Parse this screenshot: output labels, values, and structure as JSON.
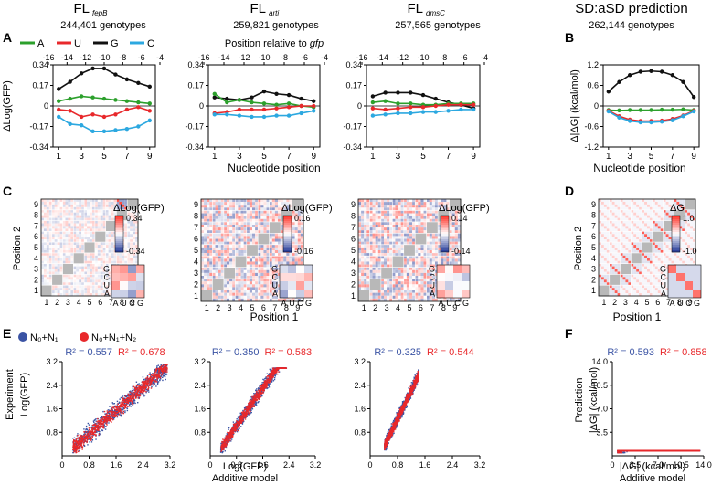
{
  "figure": {
    "titles": [
      {
        "main": "FL",
        "sub": "fepB",
        "genotypes": "244,401 genotypes"
      },
      {
        "main": "FL",
        "sub": "arti",
        "genotypes": "259,821 genotypes"
      },
      {
        "main": "FL",
        "sub": "dmsC",
        "genotypes": "257,565 genotypes"
      },
      {
        "main": "SD:aSD prediction",
        "sub": "",
        "genotypes": "262,144 genotypes"
      }
    ],
    "panel_letters": {
      "A": "A",
      "B": "B",
      "C": "C",
      "D": "D",
      "E": "E",
      "F": "F"
    },
    "legend_nuc": [
      "A",
      "U",
      "G",
      "C"
    ],
    "legend_model": [
      "N₀+N₁",
      "N₀+N₁+N₂"
    ],
    "top_axis_label": "Position relative to gfp",
    "labels": {
      "nuc_position": "Nucleotide position",
      "position1": "Position 1",
      "position2": "Position 2",
      "dlog_gfp": "ΔLog(GFP)",
      "ddg": "Δ|ΔG| (kcal/mol)",
      "dg_short": "ΔG",
      "experiment": "Experiment",
      "log_gfp": "Log(GFP)",
      "additive_model": "Additive model",
      "prediction": "Prediction",
      "abs_dg": "|ΔG| (kcal/mol)"
    },
    "r2_labels": [
      [
        "R² = 0.557",
        "R² = 0.678"
      ],
      [
        "R² = 0.350",
        "R² = 0.583"
      ],
      [
        "R² = 0.325",
        "R² = 0.544"
      ],
      [
        "R² = 0.593",
        "R² = 0.858"
      ]
    ],
    "colorbars": [
      [
        "0.34",
        "-0.34"
      ],
      [
        "0.16",
        "-0.16"
      ],
      [
        "0.14",
        "-0.14"
      ],
      [
        "1.0",
        "-1.0"
      ]
    ],
    "pair_axis_x": [
      "A",
      "U",
      "C",
      "G"
    ],
    "pair_axis_y": [
      "G",
      "C",
      "U",
      "A"
    ],
    "colors": {
      "A": "#2ca02c",
      "U": "#e8282b",
      "G": "#111111",
      "C": "#2ca8e0",
      "blue": "#3a53a4",
      "red": "#e8282b",
      "grey": "#b8b8b8"
    }
  },
  "chart_data": [
    {
      "type": "line",
      "title": "FL fepB",
      "xlabel": "Nucleotide position",
      "ylabel": "ΔLog(GFP)",
      "x": [
        1,
        2,
        3,
        4,
        5,
        6,
        7,
        8,
        9
      ],
      "xticks": [
        "1",
        "3",
        "5",
        "7",
        "9"
      ],
      "top_xticks": [
        "-16",
        "-14",
        "-12",
        "-10",
        "-8",
        "-6",
        "-4"
      ],
      "ylim": [
        -0.34,
        0.34
      ],
      "yticks": [
        "0.34",
        "0.17",
        "0",
        "-0.17",
        "-0.34"
      ],
      "series": [
        {
          "name": "G",
          "values": [
            0.14,
            0.2,
            0.27,
            0.31,
            0.31,
            0.26,
            0.22,
            0.19,
            0.16
          ]
        },
        {
          "name": "A",
          "values": [
            0.04,
            0.06,
            0.08,
            0.07,
            0.06,
            0.05,
            0.04,
            0.03,
            0.02
          ]
        },
        {
          "name": "U",
          "values": [
            -0.03,
            -0.04,
            -0.09,
            -0.07,
            -0.09,
            -0.07,
            -0.03,
            -0.01,
            -0.04
          ]
        },
        {
          "name": "C",
          "values": [
            -0.09,
            -0.15,
            -0.16,
            -0.21,
            -0.21,
            -0.2,
            -0.19,
            -0.17,
            -0.12
          ]
        }
      ]
    },
    {
      "type": "line",
      "title": "FL arti",
      "xlabel": "Nucleotide position",
      "ylabel": "ΔLog(GFP)",
      "x": [
        1,
        2,
        3,
        4,
        5,
        6,
        7,
        8,
        9
      ],
      "xticks": [
        "1",
        "3",
        "5",
        "7",
        "9"
      ],
      "top_xticks": [
        "-16",
        "-14",
        "-12",
        "-10",
        "-8",
        "-6",
        "-4"
      ],
      "ylim": [
        -0.34,
        0.34
      ],
      "yticks": [
        "0.34",
        "0.17",
        "0",
        "-0.17",
        "-0.34"
      ],
      "series": [
        {
          "name": "G",
          "values": [
            0.07,
            0.06,
            0.05,
            0.07,
            0.12,
            0.1,
            0.09,
            0.06,
            0.04
          ]
        },
        {
          "name": "A",
          "values": [
            0.1,
            0.03,
            0.05,
            0.03,
            0.02,
            0.01,
            0.02,
            0.0,
            -0.01
          ]
        },
        {
          "name": "U",
          "values": [
            -0.06,
            -0.05,
            -0.03,
            -0.03,
            -0.03,
            -0.02,
            -0.01,
            0.0,
            0.0
          ]
        },
        {
          "name": "C",
          "values": [
            -0.07,
            -0.07,
            -0.08,
            -0.09,
            -0.09,
            -0.08,
            -0.08,
            -0.06,
            -0.04
          ]
        }
      ]
    },
    {
      "type": "line",
      "title": "FL dmsC",
      "xlabel": "Nucleotide position",
      "ylabel": "ΔLog(GFP)",
      "x": [
        1,
        2,
        3,
        4,
        5,
        6,
        7,
        8,
        9
      ],
      "xticks": [
        "1",
        "3",
        "5",
        "7",
        "9"
      ],
      "top_xticks": [
        "-16",
        "-14",
        "-12",
        "-10",
        "-8",
        "-6",
        "-4"
      ],
      "ylim": [
        -0.34,
        0.34
      ],
      "yticks": [
        "0.34",
        "0.17",
        "0",
        "-0.17",
        "-0.34"
      ],
      "series": [
        {
          "name": "G",
          "values": [
            0.08,
            0.11,
            0.11,
            0.11,
            0.09,
            0.06,
            0.03,
            0.01,
            -0.02
          ]
        },
        {
          "name": "A",
          "values": [
            0.03,
            0.04,
            0.02,
            0.02,
            0.01,
            0.01,
            0.02,
            0.02,
            0.02
          ]
        },
        {
          "name": "U",
          "values": [
            -0.02,
            -0.03,
            -0.02,
            -0.01,
            -0.01,
            0.0,
            0.01,
            0.01,
            0.01
          ]
        },
        {
          "name": "C",
          "values": [
            -0.08,
            -0.07,
            -0.06,
            -0.06,
            -0.05,
            -0.05,
            -0.04,
            -0.03,
            -0.03
          ]
        }
      ]
    },
    {
      "type": "line",
      "title": "SD:aSD prediction",
      "xlabel": "Nucleotide position",
      "ylabel": "Δ|ΔG| (kcal/mol)",
      "x": [
        1,
        2,
        3,
        4,
        5,
        6,
        7,
        8,
        9
      ],
      "xticks": [
        "1",
        "3",
        "5",
        "7",
        "9"
      ],
      "ylim": [
        -1.2,
        1.2
      ],
      "yticks": [
        "1.2",
        "0.6",
        "0",
        "-0.6",
        "-1.2"
      ],
      "series": [
        {
          "name": "G",
          "values": [
            0.42,
            0.7,
            0.9,
            1.0,
            1.02,
            1.0,
            0.9,
            0.7,
            0.26
          ]
        },
        {
          "name": "A",
          "values": [
            -0.12,
            -0.13,
            -0.12,
            -0.12,
            -0.12,
            -0.11,
            -0.11,
            -0.1,
            -0.12
          ]
        },
        {
          "name": "U",
          "values": [
            -0.14,
            -0.3,
            -0.4,
            -0.44,
            -0.44,
            -0.43,
            -0.38,
            -0.28,
            -0.14
          ]
        },
        {
          "name": "C",
          "values": [
            -0.16,
            -0.34,
            -0.44,
            -0.48,
            -0.48,
            -0.46,
            -0.42,
            -0.3,
            -0.16
          ]
        }
      ]
    },
    {
      "type": "heatmap",
      "title": "FL fepB pairwise",
      "xlabel": "Position 1",
      "ylabel": "Position 2",
      "categories": [
        "1",
        "2",
        "3",
        "4",
        "5",
        "6",
        "7",
        "8",
        "9"
      ],
      "colorbar_range": [
        -0.34,
        0.34
      ],
      "legend": "ΔLog(GFP)"
    },
    {
      "type": "heatmap",
      "title": "FL arti pairwise",
      "xlabel": "Position 1",
      "ylabel": "Position 2",
      "categories": [
        "1",
        "2",
        "3",
        "4",
        "5",
        "6",
        "7",
        "8",
        "9"
      ],
      "colorbar_range": [
        -0.16,
        0.16
      ],
      "legend": "ΔLog(GFP)"
    },
    {
      "type": "heatmap",
      "title": "FL dmsC pairwise",
      "xlabel": "Position 1",
      "ylabel": "Position 2",
      "categories": [
        "1",
        "2",
        "3",
        "4",
        "5",
        "6",
        "7",
        "8",
        "9"
      ],
      "colorbar_range": [
        -0.14,
        0.14
      ],
      "legend": "ΔLog(GFP)"
    },
    {
      "type": "heatmap",
      "title": "SD:aSD pairwise",
      "xlabel": "Position 1",
      "ylabel": "Position 2",
      "categories": [
        "1",
        "2",
        "3",
        "4",
        "5",
        "6",
        "7",
        "8",
        "9"
      ],
      "colorbar_range": [
        -1.0,
        1.0
      ],
      "legend": "ΔG"
    },
    {
      "type": "scatter",
      "title": "FL fepB model",
      "xlabel": "",
      "ylabel": "Experiment Log(GFP)",
      "xlim": [
        0,
        3.2
      ],
      "ylim": [
        0,
        3.2
      ],
      "xticks": [
        "0",
        "0.8",
        "1.6",
        "2.4",
        "3.2"
      ],
      "yticks": [
        "0.8",
        "1.6",
        "2.4",
        "3.2"
      ],
      "r2": {
        "N0+N1": 0.557,
        "N0+N1+N2": 0.678
      }
    },
    {
      "type": "scatter",
      "title": "FL arti model",
      "xlabel": "Log(GFP) Additive model",
      "ylabel": "",
      "xlim": [
        0,
        3.2
      ],
      "ylim": [
        0,
        3.2
      ],
      "xticks": [
        "0",
        "0.8",
        "1.6",
        "2.4",
        "3.2"
      ],
      "yticks": [
        "0.8",
        "1.6",
        "2.4",
        "3.2"
      ],
      "r2": {
        "N0+N1": 0.35,
        "N0+N1+N2": 0.583
      }
    },
    {
      "type": "scatter",
      "title": "FL dmsC model",
      "xlabel": "",
      "ylabel": "",
      "xlim": [
        0,
        3.2
      ],
      "ylim": [
        0,
        3.2
      ],
      "xticks": [
        "0",
        "0.8",
        "1.6",
        "2.4",
        "3.2"
      ],
      "yticks": [
        "0.8",
        "1.6",
        "2.4",
        "3.2"
      ],
      "r2": {
        "N0+N1": 0.325,
        "N0+N1+N2": 0.544
      }
    },
    {
      "type": "scatter",
      "title": "SD:aSD model",
      "xlabel": "|ΔG| (kcal/mol) Additive model",
      "ylabel": "Prediction |ΔG| (kcal/mol)",
      "xlim": [
        0,
        14.0
      ],
      "ylim": [
        0,
        14.0
      ],
      "xticks": [
        "0",
        "3.5",
        "7.0",
        "10.5",
        "14.0"
      ],
      "yticks": [
        "3.5",
        "7.0",
        "10.5",
        "14.0"
      ],
      "r2": {
        "N0+N1": 0.593,
        "N0+N1+N2": 0.858
      }
    }
  ]
}
